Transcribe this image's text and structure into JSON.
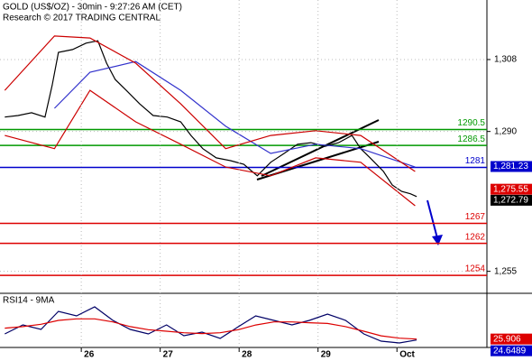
{
  "chart_data": [
    {
      "type": "line",
      "title": "GOLD (US$/OZ) - 30min - 9:27:26 AM (CET)",
      "subtitle": "Research © 2017 TRADING CENTRAL",
      "xlim": [
        -1.03,
        5.14
      ],
      "ylim": [
        1249.5,
        1322.9
      ],
      "yticks": [
        {
          "value": 1308,
          "label": "1,308"
        },
        {
          "value": 1290,
          "label": "1,290"
        },
        {
          "value": 1255,
          "label": "1,255"
        }
      ],
      "grid": true,
      "series": [
        {
          "color": "#000000",
          "x": [
            -0.97,
            -0.8,
            -0.63,
            -0.46,
            -0.37,
            -0.29,
            -0.11,
            0.06,
            0.21,
            0.32,
            0.43,
            0.57,
            0.74,
            0.91,
            1.09,
            1.26,
            1.39,
            1.54,
            1.71,
            1.89,
            2.06,
            2.23,
            2.4,
            2.57,
            2.74,
            2.91,
            3.09,
            3.26,
            3.43,
            3.54,
            3.66,
            3.83,
            3.94,
            4.06,
            4.17,
            4.25
          ],
          "values": [
            1293.6,
            1294.0,
            1294.7,
            1293.6,
            1301.5,
            1309.8,
            1310.5,
            1312.1,
            1312.7,
            1307.1,
            1303.0,
            1300.3,
            1296.9,
            1294.0,
            1293.6,
            1292.4,
            1289.0,
            1285.7,
            1283.4,
            1282.7,
            1281.8,
            1278.9,
            1282.3,
            1284.5,
            1286.8,
            1287.2,
            1286.3,
            1287.2,
            1289.0,
            1285.7,
            1283.4,
            1280.0,
            1276.6,
            1275.0,
            1274.4,
            1273.7
          ]
        },
        {
          "color": "#3333cc",
          "x": [
            -0.34,
            0.11,
            0.69,
            1.26,
            1.83,
            2.4,
            2.97,
            3.54,
            4.23
          ],
          "values": [
            1295.8,
            1304.8,
            1307.5,
            1300.3,
            1291.3,
            1284.5,
            1286.8,
            1285.7,
            1281.1
          ]
        },
        {
          "color": "#cc0000",
          "x": [
            -0.97,
            -0.34,
            0.11,
            0.69,
            1.26,
            1.83,
            2.4,
            2.97,
            3.54,
            4.23
          ],
          "values": [
            1300.3,
            1313.9,
            1313.4,
            1307.1,
            1296.9,
            1285.7,
            1289.0,
            1290.2,
            1289.0,
            1280.0
          ]
        },
        {
          "color": "#cc0000",
          "x": [
            -0.97,
            -0.34,
            0.11,
            0.69,
            1.26,
            1.83,
            2.4,
            2.97,
            3.54,
            4.23
          ],
          "values": [
            1289.0,
            1285.7,
            1300.3,
            1292.4,
            1286.8,
            1281.1,
            1278.9,
            1283.4,
            1282.3,
            1271.4
          ]
        }
      ],
      "levels": [
        {
          "value": 1290.5,
          "color": "#009900"
        },
        {
          "value": 1286.5,
          "color": "#009900"
        },
        {
          "value": 1281,
          "color": "#0000cc"
        },
        {
          "value": 1267,
          "color": "#dd0000"
        },
        {
          "value": 1262,
          "color": "#dd0000"
        },
        {
          "value": 1254,
          "color": "#dd0000"
        }
      ],
      "price_flags": [
        {
          "value": 1281.23,
          "label": "1,281.23",
          "color": "#0000cc"
        },
        {
          "value": 1275.55,
          "label": "1,275.55",
          "color": "#dd0000"
        },
        {
          "value": 1272.79,
          "label": "1,272.79",
          "color": "#000000"
        }
      ]
    },
    {
      "type": "line",
      "title": "RSI14 - 9MA",
      "xlim": [
        -1.03,
        5.14
      ],
      "ylim": [
        15,
        85
      ],
      "xticks": [
        {
          "value": 0,
          "label": "26"
        },
        {
          "value": 1,
          "label": "27"
        },
        {
          "value": 2,
          "label": "28"
        },
        {
          "value": 3,
          "label": "29"
        },
        {
          "value": 4,
          "label": "Oct"
        }
      ],
      "series": [
        {
          "color": "#000066",
          "x": [
            -0.97,
            -0.74,
            -0.51,
            -0.29,
            -0.06,
            0.17,
            0.4,
            0.62,
            0.85,
            1.08,
            1.3,
            1.53,
            1.76,
            1.99,
            2.21,
            2.44,
            2.67,
            2.89,
            3.12,
            3.35,
            3.58,
            3.8,
            4.03,
            4.25
          ],
          "values": [
            32.5,
            44.2,
            38.3,
            61.7,
            55.8,
            67.5,
            50,
            38.3,
            32.5,
            44.2,
            30.2,
            34.8,
            26.7,
            41.8,
            55.8,
            50,
            44.2,
            50,
            58.2,
            50,
            32.5,
            23.2,
            20.8,
            24.6489
          ]
        },
        {
          "color": "#dd0000",
          "x": [
            -0.97,
            -0.74,
            -0.51,
            -0.29,
            -0.06,
            0.17,
            0.4,
            0.62,
            0.85,
            1.08,
            1.3,
            1.53,
            1.76,
            1.99,
            2.21,
            2.44,
            2.67,
            2.89,
            3.12,
            3.35,
            3.58,
            3.8,
            4.03,
            4.25
          ],
          "values": [
            40,
            42,
            45,
            50,
            52,
            52,
            48,
            42,
            38,
            36,
            34,
            33,
            34,
            38,
            44,
            48,
            48,
            47,
            46,
            42,
            36,
            30,
            27,
            25.906
          ]
        }
      ],
      "flags": [
        {
          "value": 25.906,
          "color": "#dd0000"
        },
        {
          "value": 24.6489,
          "color": "#0000cc"
        }
      ]
    }
  ]
}
